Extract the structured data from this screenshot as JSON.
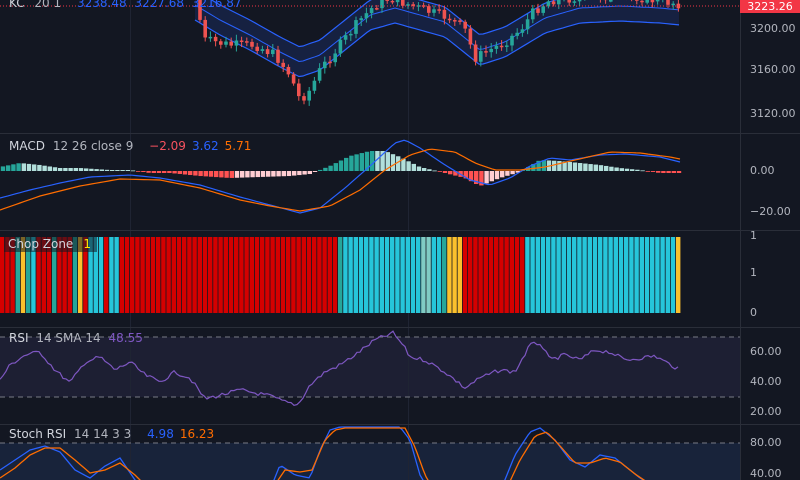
{
  "panes": {
    "kc": {
      "name": "KC",
      "params": "20 1",
      "values": [
        "3238.48",
        "3227.68",
        "3216.87"
      ],
      "axis": [
        "3200.00",
        "3160.00",
        "3120.00"
      ],
      "last_price": "3223.26"
    },
    "macd": {
      "name": "MACD",
      "params": "12 26 close 9",
      "values": [
        {
          "text": "−2.09",
          "color": "#f7525f"
        },
        {
          "text": "3.62",
          "color": "#2962ff"
        },
        {
          "text": "5.71",
          "color": "#ff6d00"
        }
      ],
      "axis": [
        "0.00",
        "−20.00"
      ]
    },
    "chop": {
      "name": "Chop Zone",
      "value": "1",
      "axis": [
        "1",
        "1",
        "0"
      ]
    },
    "rsi": {
      "name": "RSI",
      "params": "14 SMA 14",
      "value": "48.55",
      "axis": [
        "60.00",
        "40.00",
        "20.00"
      ]
    },
    "stoch": {
      "name": "Stoch RSI",
      "params": "14 14 3 3",
      "values": [
        {
          "text": "4.98",
          "color": "#2962ff"
        },
        {
          "text": "16.23",
          "color": "#ff6d00"
        }
      ],
      "axis": [
        "80.00",
        "40.00"
      ]
    }
  },
  "colors": {
    "up": "#26a69a",
    "down": "#ef5350",
    "kc_band": "#2962ff",
    "rsi": "#7e57c2",
    "chop_red": "#d50000",
    "chop_teal": "#26c6da",
    "chop_green": "#26a69a",
    "chop_yellow": "#fbc02d"
  }
}
